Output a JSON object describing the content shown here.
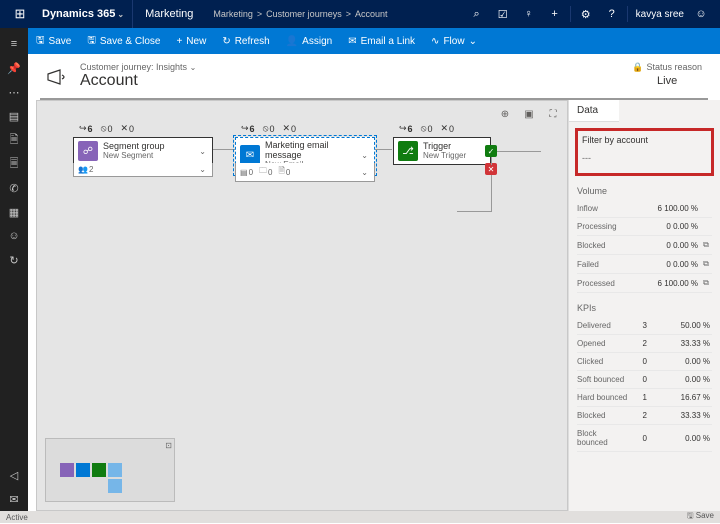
{
  "topbar": {
    "brand": "Dynamics 365",
    "module": "Marketing",
    "crumbs": [
      "Marketing",
      "Customer journeys",
      "Account"
    ],
    "user": "kavya sree"
  },
  "cmdbar": {
    "save": "Save",
    "saveclose": "Save & Close",
    "new": "New",
    "refresh": "Refresh",
    "assign": "Assign",
    "email": "Email a Link",
    "flow": "Flow"
  },
  "head": {
    "label": "Customer journey: Insights",
    "title": "Account",
    "status_label": "Status reason",
    "status": "Live"
  },
  "sidetab": "Data",
  "filter": {
    "label": "Filter by account",
    "value": "---"
  },
  "volume": {
    "heading": "Volume",
    "rows": [
      {
        "k": "Inflow",
        "v": "6 100.00 %",
        "ei": ""
      },
      {
        "k": "Processing",
        "v": "0 0.00 %",
        "ei": ""
      },
      {
        "k": "Blocked",
        "v": "0 0.00 %",
        "ei": "⧉"
      },
      {
        "k": "Failed",
        "v": "0 0.00 %",
        "ei": "⧉"
      },
      {
        "k": "Processed",
        "v": "6 100.00 %",
        "ei": "⧉"
      }
    ]
  },
  "kpi": {
    "heading": "KPIs",
    "rows": [
      {
        "k": "Delivered",
        "c": "3",
        "p": "50.00 %"
      },
      {
        "k": "Opened",
        "c": "2",
        "p": "33.33 %"
      },
      {
        "k": "Clicked",
        "c": "0",
        "p": "0.00 %"
      },
      {
        "k": "Soft bounced",
        "c": "0",
        "p": "0.00 %"
      },
      {
        "k": "Hard bounced",
        "c": "1",
        "p": "16.67 %"
      },
      {
        "k": "Blocked",
        "c": "2",
        "p": "33.33 %"
      },
      {
        "k": "Block bounced",
        "c": "0",
        "p": "0.00 %"
      }
    ]
  },
  "nodes": {
    "n1": {
      "t": "Segment group",
      "s": "New Segment",
      "st": {
        "a": "6",
        "b": "0",
        "c": "0"
      },
      "foot": "2"
    },
    "n2": {
      "t": "Marketing email message",
      "s": "New Email",
      "st": {
        "a": "6",
        "b": "0",
        "c": "0"
      },
      "foot": {
        "a": "0",
        "b": "0",
        "c": "0"
      }
    },
    "n3": {
      "t": "Trigger",
      "s": "New Trigger",
      "st": {
        "a": "6",
        "b": "0",
        "c": "0"
      }
    }
  },
  "footer": {
    "left": "Active",
    "save": "Save"
  },
  "mini": {
    "colors": [
      "#8764b8",
      "#0078d4",
      "#107c10",
      "#76b6e8"
    ]
  }
}
